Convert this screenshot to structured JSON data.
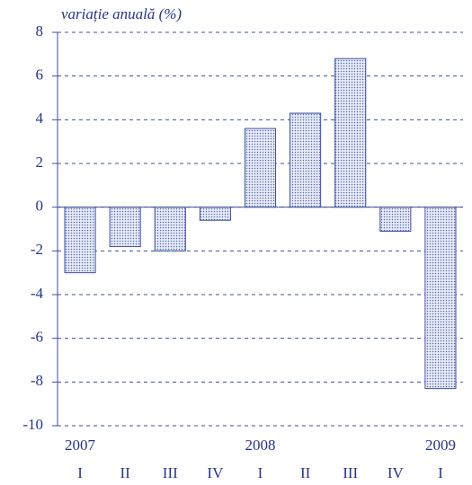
{
  "chart_data": {
    "type": "bar",
    "y_label": "variație anuală (%)",
    "categories": [
      "I",
      "II",
      "III",
      "IV",
      "I",
      "II",
      "III",
      "IV",
      "I"
    ],
    "groups": [
      {
        "label": "2007",
        "size": 4
      },
      {
        "label": "2008",
        "size": 4
      },
      {
        "label": "2009",
        "size": 1
      }
    ],
    "values": [
      -3.0,
      -1.8,
      -2.0,
      -0.6,
      3.6,
      4.3,
      6.8,
      -1.1,
      -8.3
    ],
    "color": "#3b4fa0",
    "ylim": [
      -10,
      8
    ],
    "yticks": [
      -10,
      -8,
      -6,
      -4,
      -2,
      0,
      2,
      4,
      6,
      8
    ],
    "grid": true
  }
}
